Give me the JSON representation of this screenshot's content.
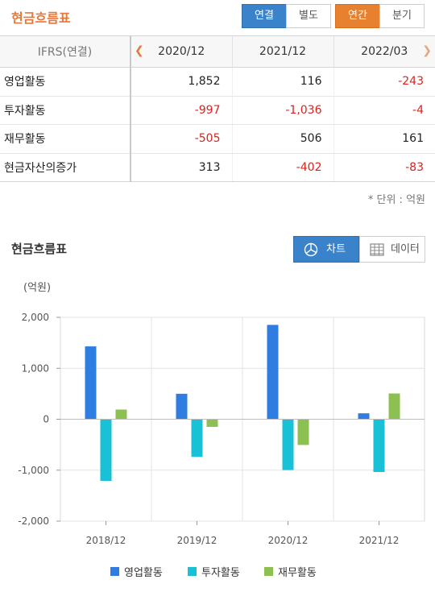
{
  "header": {
    "title": "현금흐름표",
    "btn_consolidated": "연결",
    "btn_separate": "별도",
    "btn_annual": "연간",
    "btn_quarterly": "분기"
  },
  "table": {
    "corner_label": "IFRS(연결)",
    "columns": [
      "2020/12",
      "2021/12",
      "2022/03"
    ],
    "rows": [
      {
        "label": "영업활동",
        "values": [
          "1,852",
          "116",
          "-243"
        ]
      },
      {
        "label": "투자활동",
        "values": [
          "-997",
          "-1,036",
          "-4"
        ]
      },
      {
        "label": "재무활동",
        "values": [
          "-505",
          "506",
          "161"
        ]
      },
      {
        "label": "현금자산의증가",
        "values": [
          "313",
          "-402",
          "-83"
        ]
      }
    ],
    "unit_note": "* 단위 : 억원"
  },
  "chart_section": {
    "title": "현금흐름표",
    "btn_chart": "차트",
    "btn_data": "데이터",
    "unit_label": "(억원)"
  },
  "colors": {
    "accent_orange": "#e8783a",
    "accent_blue": "#3a82c9",
    "negative": "#d9231e"
  },
  "chart_data": {
    "type": "bar",
    "categories": [
      "2018/12",
      "2019/12",
      "2020/12",
      "2021/12"
    ],
    "series": [
      {
        "name": "영업활동",
        "color": "#2f7de1",
        "values": [
          1430,
          500,
          1852,
          116
        ]
      },
      {
        "name": "투자활동",
        "color": "#19c1d6",
        "values": [
          -1210,
          -740,
          -997,
          -1036
        ]
      },
      {
        "name": "재무활동",
        "color": "#8cc152",
        "values": [
          190,
          -150,
          -505,
          506
        ]
      }
    ],
    "yticks": [
      "2,000",
      "1,000",
      "0",
      "-1,000",
      "-2,000"
    ],
    "ylim": [
      -2000,
      2000
    ],
    "grid": true,
    "legend": "bottom"
  }
}
